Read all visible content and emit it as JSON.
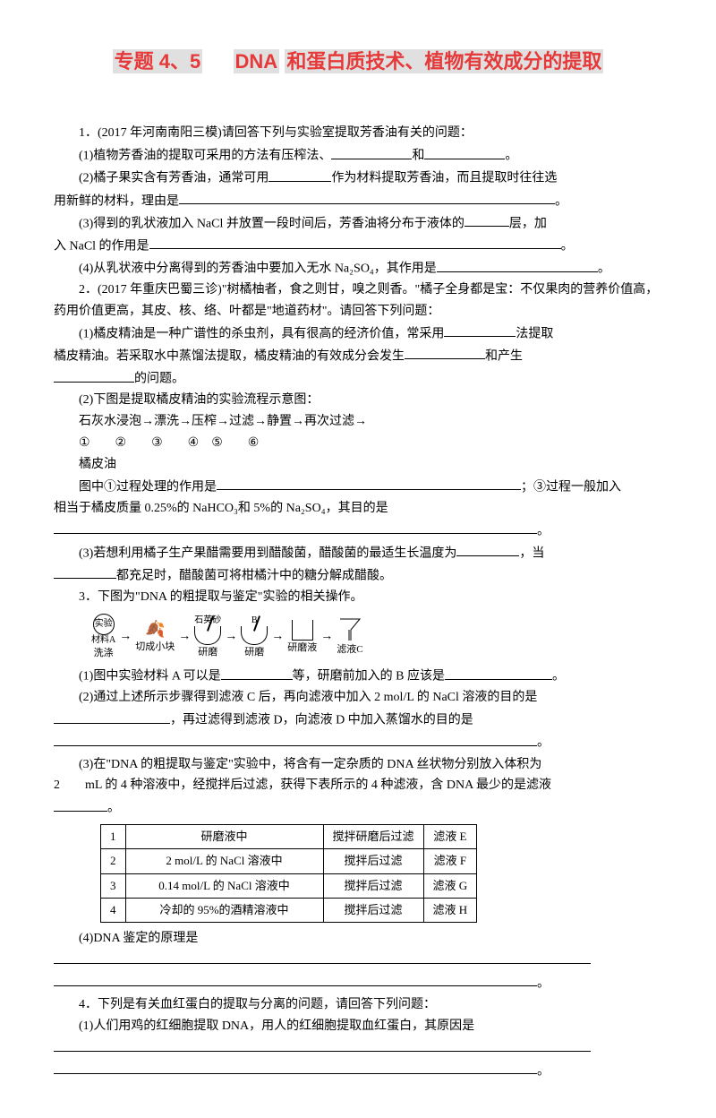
{
  "title": {
    "p1": "专题 4、5",
    "p2": "DNA",
    "p3": "和蛋白质技术、植物有效成分的提取"
  },
  "q1": {
    "lead": "1．(2017 年河南南阳三模)请回答下列与实验室提取芳香油有关的问题：",
    "s1a": "(1)植物芳香油的提取可采用的方法有压榨法、",
    "s1b": "和",
    "s1c": "。",
    "s2a": "(2)橘子果实含有芳香油，通常可用",
    "s2b": "作为材料提取芳香油，而且提取时往往选",
    "s2c": "用新鲜的材料，理由是",
    "s2d": "。",
    "s3a": "(3)得到的乳状液加入 NaCl 并放置一段时间后，芳香油将分布于液体的",
    "s3b": "层，加",
    "s3c": "入 NaCl 的作用是",
    "s3d": "。",
    "s4": "(4)从乳状液中分离得到的芳香油中要加入无水 Na₂SO₄，其作用是",
    "s4b": "。"
  },
  "q2": {
    "lead": "2．(2017 年重庆巴蜀三诊)\"树橘柚者，食之则甘，嗅之则香。\"橘子全身都是宝：不仅果肉的营养价值高，药用价值更高，其皮、核、络、叶都是\"地道药材\"。请回答下列问题：",
    "s1a": "(1)橘皮精油是一种广谱性的杀虫剂，具有很高的经济价值，常采用",
    "s1b": "法提取",
    "s1c": "橘皮精油。若采取水中蒸馏法提取，橘皮精油的有效成分会发生",
    "s1d": "和产生",
    "s1e": "的问题。",
    "s2a": "(2)下图是提取橘皮精油的实验流程示意图：",
    "s2b": "石灰水浸泡→漂洗→压榨→过滤→静置→再次过滤→",
    "s2c": "①　　②　　③　　④　⑤　　⑥",
    "s2d": "橘皮油",
    "s2e": "图中①过程处理的作用是",
    "s2f": "；③过程一般加入",
    "s2g": "相当于橘皮质量 0.25%的 NaHCO₃和 5%的 Na₂SO₄，其目的是",
    "s2h": "。",
    "s3a": "(3)若想利用橘子生产果醋需要用到醋酸菌，醋酸菌的最适生长温度为",
    "s3b": "，当",
    "s3c": "都充足时，醋酸菌可将柑橘汁中的糖分解成醋酸。"
  },
  "q3": {
    "lead": "3．下图为\"DNA 的粗提取与鉴定\"实验的相关操作。",
    "diagram": {
      "n1_top": "实验",
      "n1_bot": "材料A",
      "n1_label": "洗涤",
      "n2_label": "切成小块",
      "n3_top": "石英砂",
      "n3_label": "研磨",
      "n4_top": "B",
      "n4_label": "研磨",
      "n5_label": "研磨液",
      "n6_label": "滤液C"
    },
    "s1a": "(1)图中实验材料 A 可以是",
    "s1b": "等，研磨前加入的 B 应该是",
    "s1c": "。",
    "s2a": "(2)通过上述所示步骤得到滤液 C 后，再向滤液中加入 2 mol/L 的 NaCl 溶液的目的是",
    "s2b": "，再过滤得到滤液 D，向滤液 D 中加入蒸馏水的目的是",
    "s2c": "。",
    "s3a": "(3)在\"DNA 的粗提取与鉴定\"实验中，将含有一定杂质的 DNA 丝状物分别放入体积为",
    "s3b": "mL 的 4 种溶液中，经搅拌后过滤，获得下表所示的 4 种滤液，含 DNA 最少的是滤液",
    "s3num": "2",
    "s3c": "。",
    "table": {
      "rows": [
        [
          "1",
          "研磨液中",
          "搅拌研磨后过滤",
          "滤液 E"
        ],
        [
          "2",
          "2 mol/L 的 NaCl 溶液中",
          "搅拌后过滤",
          "滤液 F"
        ],
        [
          "3",
          "0.14 mol/L 的 NaCl 溶液中",
          "搅拌后过滤",
          "滤液 G"
        ],
        [
          "4",
          "冷却的 95%的酒精溶液中",
          "搅拌后过滤",
          "滤液 H"
        ]
      ]
    },
    "s4a": "(4)DNA 鉴定的原理是",
    "s4b": "。"
  },
  "q4": {
    "lead": "4．下列是有关血红蛋白的提取与分离的问题，请回答下列问题：",
    "s1": "(1)人们用鸡的红细胞提取 DNA，用人的红细胞提取血红蛋白，其原因是",
    "s1b": "。"
  },
  "colors": {
    "accent": "#e63939",
    "text": "#000000",
    "bg_tint": "#e0e0e0"
  }
}
